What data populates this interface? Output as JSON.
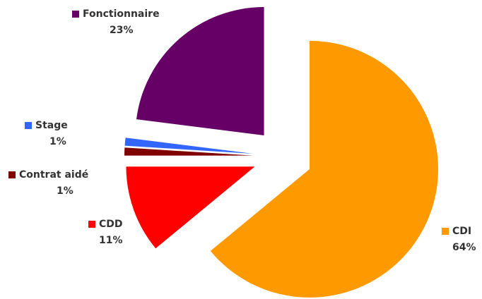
{
  "chart_data": {
    "type": "pie",
    "categories": [
      "CDI",
      "CDD",
      "Contrat aidé",
      "Stage",
      "Fonctionnaire"
    ],
    "values": [
      64,
      11,
      1,
      1,
      23
    ],
    "value_labels": [
      "64%",
      "11%",
      "1%",
      "1%",
      "23%"
    ],
    "colors": [
      "#ff9900",
      "#ff0000",
      "#800000",
      "#3366ff",
      "#660066"
    ]
  }
}
